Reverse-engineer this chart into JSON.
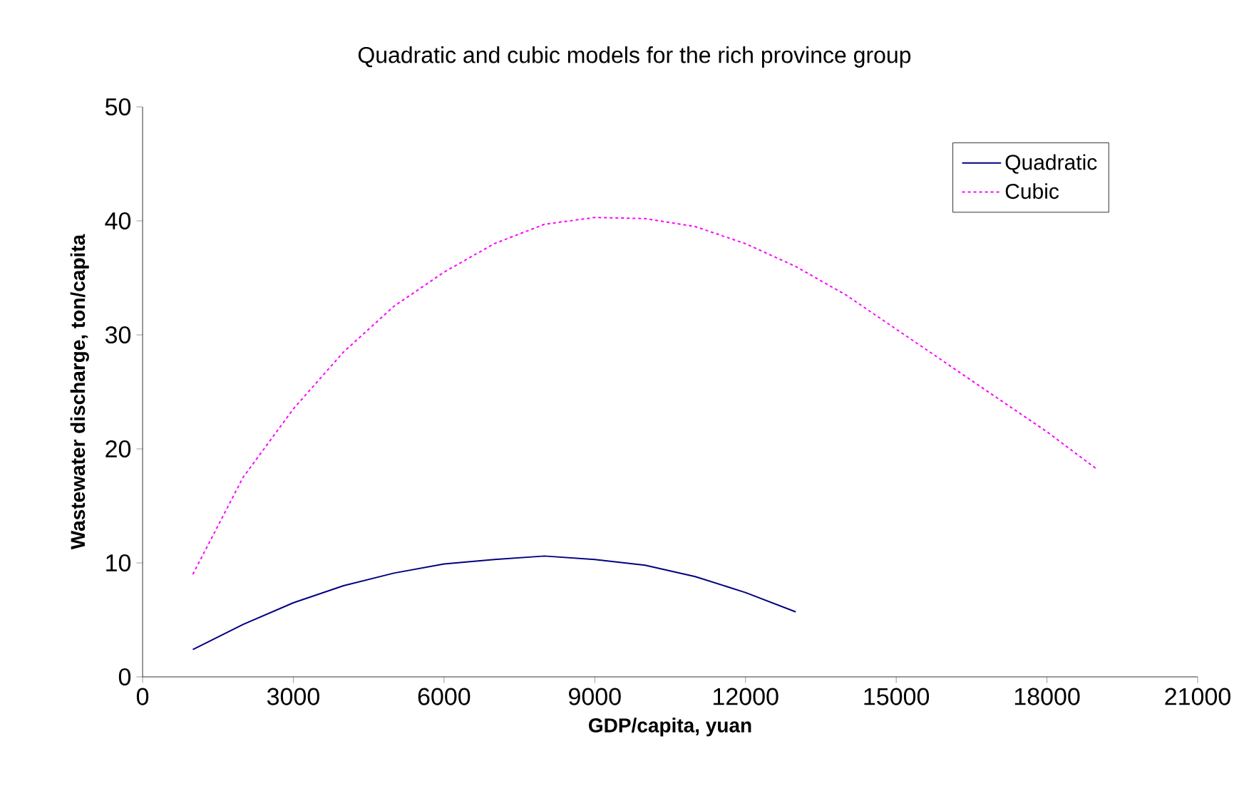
{
  "chart_data": {
    "type": "line",
    "title": "Quadratic and cubic models for the rich province group",
    "xlabel": "GDP/capita, yuan",
    "ylabel": "Wastewater discharge, ton/capita",
    "xlim": [
      0,
      21000
    ],
    "xticks": [
      0,
      3000,
      6000,
      9000,
      12000,
      15000,
      18000,
      21000
    ],
    "ylim": [
      0,
      50
    ],
    "yticks": [
      0,
      10,
      20,
      30,
      40,
      50
    ],
    "grid": false,
    "legend": "top right",
    "marker": "none",
    "series": [
      {
        "name": "Quadratic",
        "color": "#000080",
        "line_style": "solid",
        "x": [
          1000,
          2000,
          3000,
          4000,
          5000,
          6000,
          7000,
          8000,
          9000,
          10000,
          11000,
          12000,
          13000
        ],
        "values": [
          2.4,
          4.6,
          6.5,
          8.0,
          9.1,
          9.9,
          10.3,
          10.6,
          10.3,
          9.8,
          8.8,
          7.4,
          5.7
        ]
      },
      {
        "name": "Cubic",
        "color": "#ff00ff",
        "line_style": "dotted",
        "x": [
          1000,
          2000,
          3000,
          4000,
          5000,
          6000,
          7000,
          8000,
          9000,
          10000,
          11000,
          12000,
          13000,
          14000,
          15000,
          16000,
          17000,
          18000,
          19000
        ],
        "values": [
          9.0,
          17.5,
          23.5,
          28.5,
          32.5,
          35.5,
          38.0,
          39.7,
          40.3,
          40.2,
          39.5,
          38.0,
          36.0,
          33.5,
          30.5,
          27.5,
          24.5,
          21.5,
          18.2
        ]
      }
    ]
  }
}
